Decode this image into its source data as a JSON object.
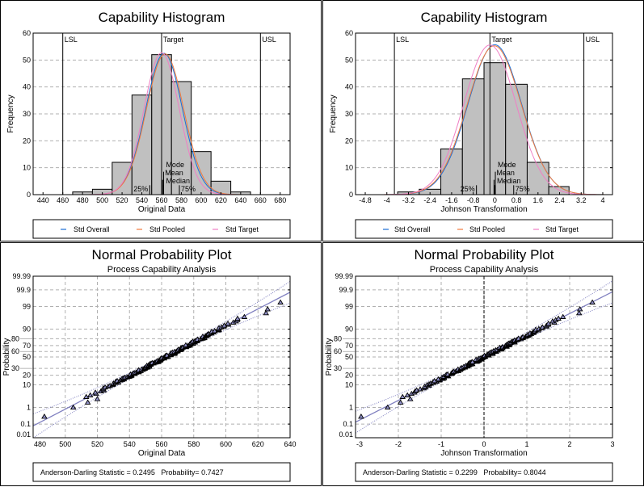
{
  "colors": {
    "bar_fill": "#c0c0c0",
    "std_overall": "#1a6fd6",
    "std_pooled": "#f27a3c",
    "std_target": "#f07ec4",
    "fit_line": "#8080c0",
    "grid": "#b0b0b0",
    "marker_fill": "#9090c8"
  },
  "chart_data": [
    {
      "type": "bar",
      "title": "Capability Histogram",
      "xlabel": "Original Data",
      "ylabel": "Frequency",
      "xlim": [
        430,
        690
      ],
      "ylim": [
        0,
        60
      ],
      "x_ticks": [
        "440",
        "460",
        "480",
        "500",
        "520",
        "540",
        "560",
        "580",
        "600",
        "620",
        "640",
        "660",
        "680"
      ],
      "x_tick_values": [
        440,
        460,
        480,
        500,
        520,
        540,
        560,
        580,
        600,
        620,
        640,
        660,
        680
      ],
      "y_ticks": [
        "0",
        "10",
        "20",
        "30",
        "40",
        "50",
        "60"
      ],
      "y_tick_values": [
        0,
        10,
        20,
        30,
        40,
        50,
        60
      ],
      "grid": "horizontal dashed",
      "bins": [
        {
          "from": 470,
          "to": 490,
          "count": 1
        },
        {
          "from": 490,
          "to": 510,
          "count": 2
        },
        {
          "from": 510,
          "to": 530,
          "count": 12
        },
        {
          "from": 530,
          "to": 550,
          "count": 37
        },
        {
          "from": 550,
          "to": 570,
          "count": 52
        },
        {
          "from": 570,
          "to": 590,
          "count": 42
        },
        {
          "from": 590,
          "to": 610,
          "count": 16
        },
        {
          "from": 610,
          "to": 630,
          "count": 5
        },
        {
          "from": 630,
          "to": 650,
          "count": 1
        }
      ],
      "spec_lines": [
        {
          "label": "LSL",
          "value": 460
        },
        {
          "label": "Target",
          "value": 560
        },
        {
          "label": "USL",
          "value": 660
        }
      ],
      "stat_markers": [
        {
          "label": "25%",
          "value": 548,
          "height": 3.5
        },
        {
          "label": "Mode",
          "value": 562,
          "height": 8.5
        },
        {
          "label": "Mean",
          "value": 561,
          "height": 5.5
        },
        {
          "label": "Median",
          "value": 562,
          "height": 3.5
        },
        {
          "label": "75%",
          "value": 578,
          "height": 3.5
        }
      ],
      "curves": [
        {
          "name": "Std Overall",
          "mean": 562.5,
          "sd": 18.6,
          "peak": 52.5
        },
        {
          "name": "Std Pooled",
          "mean": 563.5,
          "sd": 18.9,
          "peak": 52.3
        },
        {
          "name": "Std Target",
          "mean": 560,
          "sd": 17.8,
          "peak": 52.7
        }
      ],
      "legend": [
        "Std Overall",
        "Std Pooled",
        "Std Target"
      ],
      "legend_position": "bottom"
    },
    {
      "type": "bar",
      "title": "Capability Histogram",
      "xlabel": "Johnson Transformation",
      "ylabel": "Frequency",
      "xlim": [
        -5.16,
        4.36
      ],
      "ylim": [
        0,
        60
      ],
      "x_ticks": [
        "-4.8",
        "-4",
        "-3.2",
        "-2.4",
        "-1.6",
        "-0.8",
        "0",
        "0.8",
        "1.6",
        "2.4",
        "3.2",
        "4"
      ],
      "x_tick_values": [
        -4.8,
        -4,
        -3.2,
        -2.4,
        -1.6,
        -0.8,
        0,
        0.8,
        1.6,
        2.4,
        3.2,
        4
      ],
      "y_ticks": [
        "0",
        "10",
        "20",
        "30",
        "40",
        "50",
        "60"
      ],
      "y_tick_values": [
        0,
        10,
        20,
        30,
        40,
        50,
        60
      ],
      "grid": "horizontal dashed",
      "bins": [
        {
          "from": -3.6,
          "to": -2.8,
          "count": 1
        },
        {
          "from": -2.8,
          "to": -2.0,
          "count": 2
        },
        {
          "from": -2.0,
          "to": -1.2,
          "count": 17
        },
        {
          "from": -1.2,
          "to": -0.4,
          "count": 43
        },
        {
          "from": -0.4,
          "to": 0.4,
          "count": 49
        },
        {
          "from": 0.4,
          "to": 1.2,
          "count": 41
        },
        {
          "from": 1.2,
          "to": 2.0,
          "count": 12
        },
        {
          "from": 2.0,
          "to": 2.75,
          "count": 3
        }
      ],
      "spec_lines": [
        {
          "label": "LSL",
          "value": -3.72
        },
        {
          "label": "Target",
          "value": -0.18
        },
        {
          "label": "USL",
          "value": 3.3
        }
      ],
      "stat_markers": [
        {
          "label": "25%",
          "value": -0.68,
          "height": 3.5
        },
        {
          "label": "Mode",
          "value": 0.02,
          "height": 8.5
        },
        {
          "label": "Mean",
          "value": -0.03,
          "height": 5.5
        },
        {
          "label": "Median",
          "value": -0.01,
          "height": 3.5
        },
        {
          "label": "75%",
          "value": 0.7,
          "height": 3.5
        }
      ],
      "curves": [
        {
          "name": "Std Overall",
          "mean": 0.0,
          "sd": 0.99,
          "peak": 55.7
        },
        {
          "name": "Std Pooled",
          "mean": -0.02,
          "sd": 1.0,
          "peak": 55.3
        },
        {
          "name": "Std Target",
          "mean": -0.18,
          "sd": 0.97,
          "peak": 55.6
        }
      ],
      "legend": [
        "Std Overall",
        "Std Pooled",
        "Std Target"
      ],
      "legend_position": "bottom"
    },
    {
      "type": "scatter",
      "title": "Normal Probability Plot",
      "subtitle": "Process Capability Analysis",
      "xlabel": "Original Data",
      "ylabel": "Probability",
      "xlim": [
        480,
        640
      ],
      "x_ticks": [
        "480",
        "500",
        "520",
        "540",
        "560",
        "580",
        "600",
        "620",
        "640"
      ],
      "x_tick_values": [
        480,
        500,
        520,
        540,
        560,
        580,
        600,
        620,
        640
      ],
      "y_scale": "normal-probability",
      "y_ticks": [
        "0.01",
        "0.1",
        "1",
        "10",
        "20",
        "30",
        "50",
        "60",
        "70",
        "80",
        "90",
        "99",
        "99.9",
        "99.99"
      ],
      "y_tick_values": [
        0.01,
        0.1,
        1,
        10,
        20,
        30,
        50,
        60,
        70,
        80,
        90,
        99,
        99.9,
        99.99
      ],
      "grid": "both dashed",
      "fit": {
        "mean": 562.5,
        "sd": 26.0
      },
      "n_points": 168,
      "extreme_points": [
        {
          "x": 487,
          "p": 0.3
        },
        {
          "x": 505,
          "p": 1.0
        },
        {
          "x": 514,
          "p": 1.8
        },
        {
          "x": 520,
          "p": 2.6
        },
        {
          "x": 625,
          "p": 97.8
        },
        {
          "x": 626,
          "p": 98.6
        },
        {
          "x": 634,
          "p": 99.4
        }
      ],
      "stat_text": "Anderson-Darling Statistic = 0.2495   Probability= 0.7427"
    },
    {
      "type": "scatter",
      "title": "Normal Probability Plot",
      "subtitle": "Process Capability Analysis",
      "xlabel": "Johnson Transformation",
      "ylabel": "Probability",
      "xlim": [
        -3,
        3
      ],
      "x_ticks": [
        "-3",
        "-2",
        "-1",
        "0",
        "1",
        "2",
        "3"
      ],
      "x_tick_values": [
        -3,
        -2,
        -1,
        0,
        1,
        2,
        3
      ],
      "y_scale": "normal-probability",
      "y_ticks": [
        "0.01",
        "0.1",
        "1",
        "10",
        "20",
        "30",
        "50",
        "60",
        "70",
        "80",
        "90",
        "99",
        "99.9",
        "99.99"
      ],
      "y_tick_values": [
        0.01,
        0.1,
        1,
        10,
        20,
        30,
        50,
        60,
        70,
        80,
        90,
        99,
        99.9,
        99.99
      ],
      "grid": "both dashed",
      "zero_line": 0,
      "fit": {
        "mean": 0.0,
        "sd": 1.0
      },
      "n_points": 168,
      "extreme_points": [
        {
          "x": -2.87,
          "p": 0.3
        },
        {
          "x": -2.25,
          "p": 1.0
        },
        {
          "x": -1.95,
          "p": 1.8
        },
        {
          "x": -1.72,
          "p": 2.6
        },
        {
          "x": 2.22,
          "p": 97.8
        },
        {
          "x": 2.24,
          "p": 98.6
        },
        {
          "x": 2.53,
          "p": 99.4
        }
      ],
      "stat_text": "Anderson-Darling Statistic = 0.2299   Probability= 0.8044"
    }
  ]
}
